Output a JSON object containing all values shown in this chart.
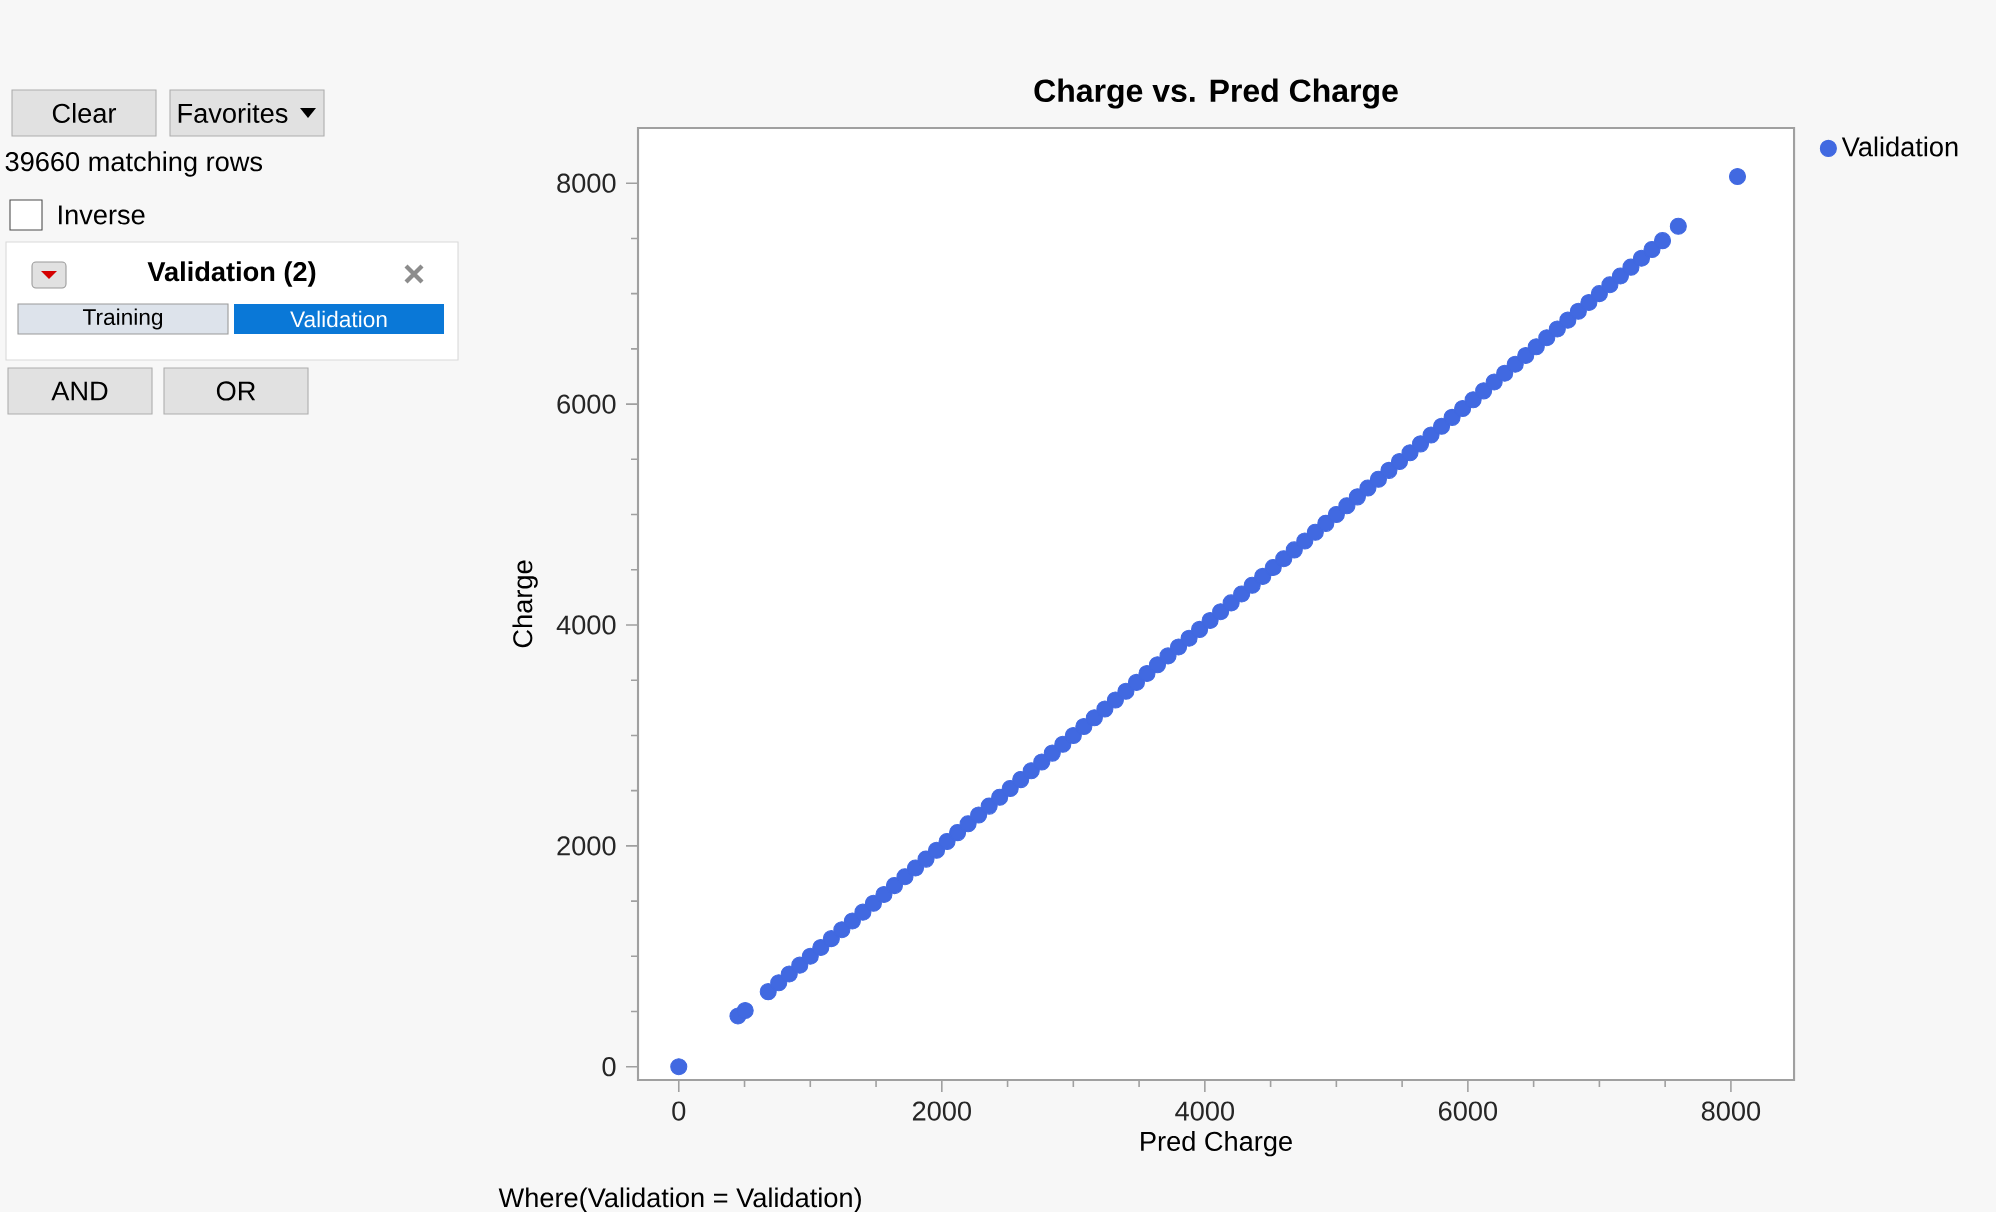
{
  "chart_data": [
    {
      "type": "other",
      "annotations": [
        "Clear",
        "Favorites",
        "39660 matching rows",
        "Inverse",
        "Validation (2)",
        "Training",
        "Validation",
        "AND",
        "OR"
      ]
    },
    {
      "type": "scatter",
      "title": "Charge vs. Pred Charge",
      "xlabel": "Pred Charge",
      "ylabel": "Charge",
      "annotations": [
        "Where(Validation = Validation)"
      ],
      "xlim": [
        -310,
        8480
      ],
      "ylim": [
        -120,
        8500
      ],
      "xticks": [
        0,
        {
          "value": 500,
          "label": null
        },
        {
          "value": 1000,
          "label": null
        },
        {
          "value": 1500,
          "label": null
        },
        2000,
        {
          "value": 2500,
          "label": null
        },
        {
          "value": 3000,
          "label": null
        },
        {
          "value": 3500,
          "label": null
        },
        4000,
        {
          "value": 4500,
          "label": null
        },
        {
          "value": 5000,
          "label": null
        },
        {
          "value": 5500,
          "label": null
        },
        6000,
        {
          "value": 6500,
          "label": null
        },
        {
          "value": 7000,
          "label": null
        },
        {
          "value": 7500,
          "label": null
        },
        8000
      ],
      "yticks": [
        0,
        {
          "value": 500,
          "label": null
        },
        {
          "value": 1000,
          "label": null
        },
        {
          "value": 1500,
          "label": null
        },
        2000,
        {
          "value": 2500,
          "label": null
        },
        {
          "value": 3000,
          "label": null
        },
        {
          "value": 3500,
          "label": null
        },
        4000,
        {
          "value": 4500,
          "label": null
        },
        {
          "value": 5000,
          "label": null
        },
        {
          "value": 5500,
          "label": null
        },
        6000,
        {
          "value": 6500,
          "label": null
        },
        {
          "value": 7000,
          "label": null
        },
        {
          "value": 7500,
          "label": null
        },
        8000
      ],
      "legend": "top right",
      "marker": "circle",
      "series": [
        {
          "name": "Validation",
          "color": "#4169e1",
          "x": [
            0,
            450,
            505,
            680,
            760,
            840,
            920,
            1000,
            1080,
            1160,
            1240,
            1320,
            1400,
            1480,
            1560,
            1640,
            1720,
            1800,
            1880,
            1960,
            2040,
            2120,
            2200,
            2280,
            2360,
            2440,
            2520,
            2600,
            2680,
            2760,
            2840,
            2920,
            3000,
            3080,
            3160,
            3240,
            3320,
            3400,
            3480,
            3560,
            3640,
            3720,
            3800,
            3880,
            3960,
            4040,
            4120,
            4200,
            4280,
            4360,
            4440,
            4520,
            4600,
            4680,
            4760,
            4840,
            4920,
            5000,
            5080,
            5160,
            5240,
            5320,
            5400,
            5480,
            5560,
            5640,
            5720,
            5800,
            5880,
            5960,
            6040,
            6120,
            6200,
            6280,
            6360,
            6440,
            6520,
            6600,
            6680,
            6760,
            6840,
            6920,
            7000,
            7080,
            7160,
            7240,
            7320,
            7400,
            7480,
            7600,
            8050
          ],
          "values": [
            0,
            460,
            510,
            680,
            760,
            840,
            920,
            1000,
            1080,
            1160,
            1240,
            1320,
            1400,
            1480,
            1560,
            1640,
            1720,
            1800,
            1880,
            1960,
            2040,
            2120,
            2200,
            2280,
            2360,
            2440,
            2520,
            2600,
            2680,
            2760,
            2840,
            2920,
            3000,
            3080,
            3160,
            3240,
            3320,
            3400,
            3480,
            3560,
            3640,
            3720,
            3800,
            3880,
            3960,
            4040,
            4120,
            4200,
            4280,
            4360,
            4440,
            4520,
            4600,
            4680,
            4760,
            4840,
            4920,
            5000,
            5080,
            5160,
            5240,
            5320,
            5400,
            5480,
            5560,
            5640,
            5720,
            5800,
            5880,
            5960,
            6040,
            6120,
            6200,
            6280,
            6360,
            6440,
            6520,
            6600,
            6680,
            6760,
            6840,
            6920,
            7000,
            7080,
            7160,
            7240,
            7320,
            7400,
            7480,
            7610,
            8060
          ]
        }
      ]
    }
  ]
}
